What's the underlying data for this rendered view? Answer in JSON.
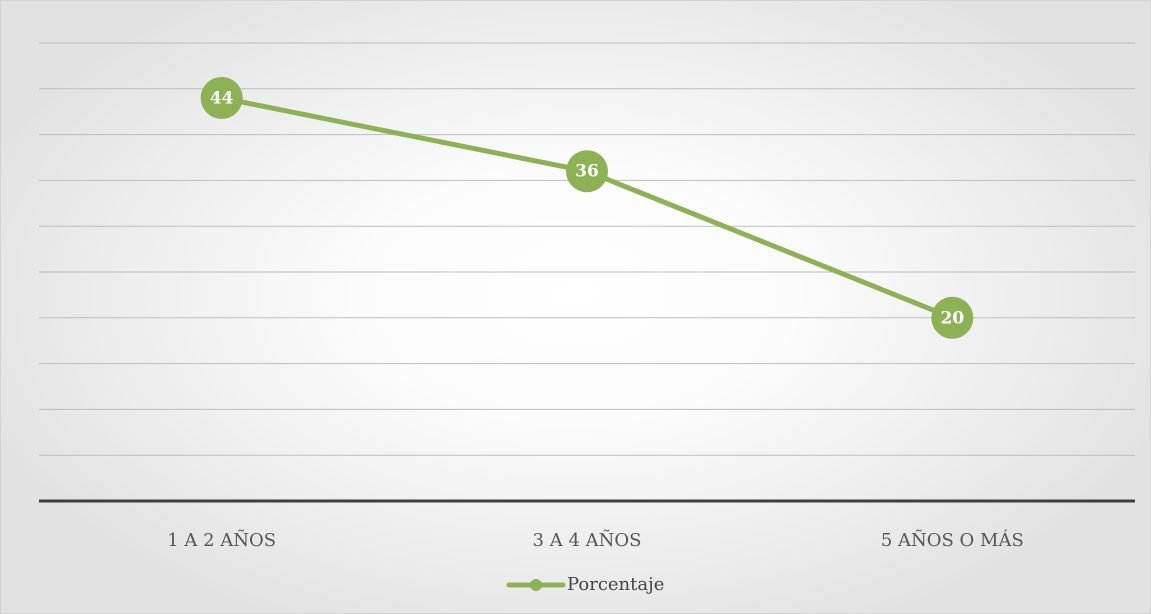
{
  "chart_data": {
    "type": "line",
    "categories": [
      "1 A 2 AÑOS",
      "3 A 4 AÑOS",
      "5 AÑOS O MÁS"
    ],
    "series": [
      {
        "name": "Porcentaje",
        "values": [
          44,
          36,
          20
        ],
        "data_labels": [
          "44",
          "36",
          "20"
        ],
        "color": "#8db255"
      }
    ],
    "title": "",
    "xlabel": "",
    "ylabel": "",
    "ylim": [
      0,
      50
    ],
    "y_major_unit": 5,
    "grid": true,
    "legend_position": "bottom",
    "axis_color": "#3f3f3f",
    "grid_color": "#bdbdbd"
  }
}
